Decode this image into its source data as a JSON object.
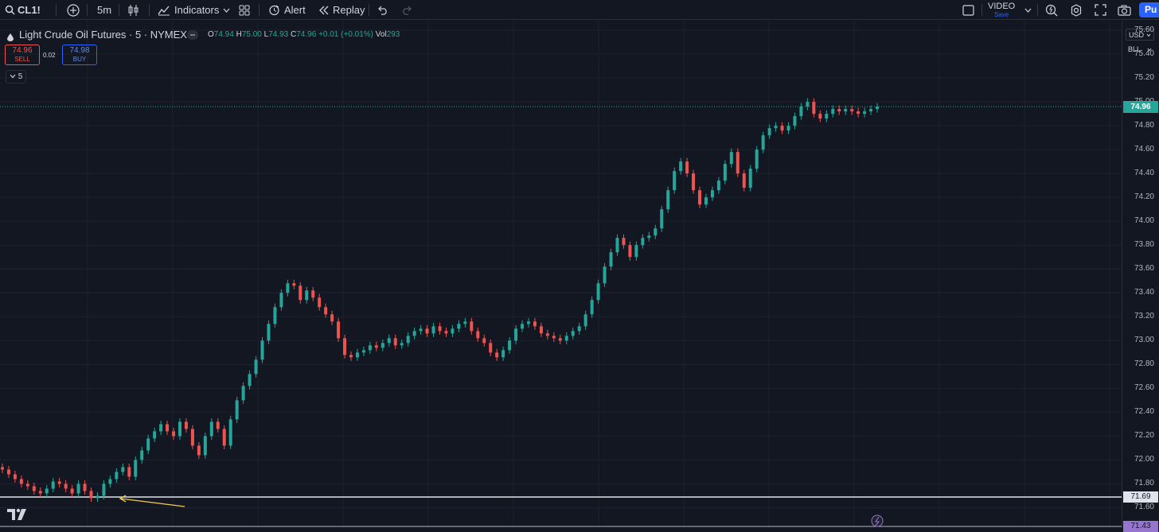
{
  "toolbar": {
    "symbol": "CL1!",
    "interval": "5m",
    "indicators_label": "Indicators",
    "alert_label": "Alert",
    "replay_label": "Replay",
    "video_label": "VIDEO",
    "video_sub": "Save",
    "publish_label": "Pu"
  },
  "legend": {
    "title": "Light Crude Oil Futures · 5 · NYMEX",
    "open_key": "O",
    "open": "74.94",
    "high_key": "H",
    "high": "75.00",
    "low_key": "L",
    "low": "74.93",
    "close_key": "C",
    "close": "74.96",
    "change": "+0.01 (+0.01%)",
    "vol_key": "Vol",
    "vol": "293",
    "collapse_label": "5"
  },
  "trade": {
    "sell_price": "74.96",
    "sell_label": "SELL",
    "spread": "0.02",
    "buy_price": "74.98",
    "buy_label": "BUY"
  },
  "axis": {
    "currency": "USD",
    "unit": "BLL",
    "ticks": [
      "75.60",
      "75.40",
      "75.20",
      "75.00",
      "74.80",
      "74.60",
      "74.40",
      "74.20",
      "74.00",
      "73.80",
      "73.60",
      "73.40",
      "73.20",
      "73.00",
      "72.80",
      "72.60",
      "72.40",
      "72.20",
      "72.00",
      "71.80",
      "71.60"
    ],
    "current_price": "74.96",
    "line_price": "71.69",
    "bottom_price": "71.43"
  },
  "colors": {
    "background": "#131722",
    "up": "#26a69a",
    "down": "#ef5350",
    "accent": "#2962ff",
    "annotation_arrow": "#f0c94d",
    "horizontal_line": "#e0e3eb",
    "bottom_badge": "#9575cd"
  },
  "chart_data": {
    "type": "line",
    "series": [
      {
        "values": [
          71.92,
          71.88,
          71.84,
          71.8,
          71.78,
          71.74,
          71.72,
          71.76,
          71.82,
          71.8,
          71.76,
          71.72,
          71.8,
          71.74,
          71.68,
          71.7,
          71.8,
          71.84,
          71.9,
          71.94,
          71.86,
          72.0,
          72.08,
          72.18,
          72.24,
          72.3,
          72.24,
          72.2,
          72.32,
          72.26,
          72.12,
          72.04,
          72.2,
          72.32,
          72.26,
          72.12,
          72.34,
          72.5,
          72.62,
          72.72,
          72.84,
          73.0,
          73.14,
          73.28,
          73.4,
          73.48,
          73.46,
          73.34,
          73.42,
          73.36,
          73.28,
          73.22,
          73.16,
          73.02,
          72.88,
          72.86,
          72.9,
          72.92,
          72.96,
          72.94,
          72.98,
          73.02,
          72.96,
          72.98,
          73.04,
          73.08,
          73.1,
          73.06,
          73.12,
          73.08,
          73.06,
          73.1,
          73.14,
          73.16,
          73.08,
          73.02,
          72.98,
          72.9,
          72.86,
          72.92,
          73.0,
          73.1,
          73.14,
          73.16,
          73.12,
          73.06,
          73.04,
          73.02,
          73.0,
          73.04,
          73.08,
          73.12,
          73.22,
          73.34,
          73.48,
          73.62,
          73.74,
          73.86,
          73.8,
          73.7,
          73.8,
          73.86,
          73.88,
          73.94,
          74.1,
          74.26,
          74.42,
          74.5,
          74.4,
          74.26,
          74.14,
          74.2,
          74.26,
          74.34,
          74.48,
          74.58,
          74.4,
          74.28,
          74.44,
          74.6,
          74.72,
          74.78,
          74.8,
          74.76,
          74.8,
          74.88,
          74.96,
          75.0,
          74.9,
          74.86,
          74.9,
          74.94,
          74.92,
          74.94,
          74.92,
          74.9,
          74.92,
          74.94,
          74.96
        ]
      }
    ],
    "ylim": [
      71.43,
      75.68
    ],
    "ylabel": "USD",
    "grid": true
  }
}
